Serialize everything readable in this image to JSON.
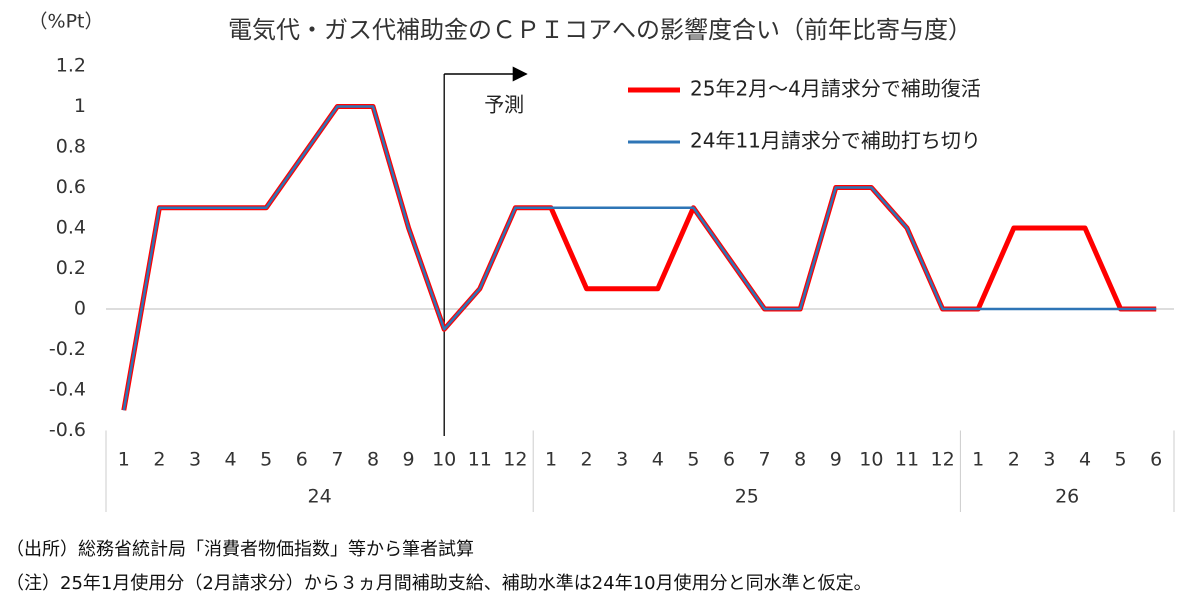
{
  "chart_data": {
    "type": "line",
    "title": "電気代・ガス代補助金のＣＰＩコアへの影響度合い（前年比寄与度）",
    "y_label": "（%Pt）",
    "categories": [
      "1",
      "2",
      "3",
      "4",
      "5",
      "6",
      "7",
      "8",
      "9",
      "10",
      "11",
      "12",
      "1",
      "2",
      "3",
      "4",
      "5",
      "6",
      "7",
      "8",
      "9",
      "10",
      "11",
      "12",
      "1",
      "2",
      "3",
      "4",
      "5",
      "6"
    ],
    "groups": [
      {
        "label": "24",
        "count": 12
      },
      {
        "label": "25",
        "count": 12
      },
      {
        "label": "26",
        "count": 6
      }
    ],
    "series": [
      {
        "name": "25年2月～4月請求分で補助復活",
        "color": "#ff0000",
        "values": [
          -0.5,
          0.5,
          0.5,
          0.5,
          0.5,
          0.75,
          1.0,
          1.0,
          0.4,
          -0.1,
          0.1,
          0.5,
          0.5,
          0.1,
          0.1,
          0.1,
          0.5,
          0.25,
          0,
          0,
          0.6,
          0.6,
          0.4,
          0,
          0,
          0.4,
          0.4,
          0.4,
          0,
          0
        ]
      },
      {
        "name": "24年11月請求分で補助打ち切り",
        "color": "#2e75b6",
        "values": [
          -0.5,
          0.5,
          0.5,
          0.5,
          0.5,
          0.75,
          1.0,
          1.0,
          0.4,
          -0.1,
          0.1,
          0.5,
          0.5,
          0.5,
          0.5,
          0.5,
          0.5,
          0.25,
          0,
          0,
          0.6,
          0.6,
          0.4,
          0,
          0,
          0,
          0,
          0,
          0,
          0
        ]
      }
    ],
    "ylim": [
      -0.6,
      1.2
    ],
    "yticks": [
      -0.6,
      -0.4,
      -0.2,
      0,
      0.2,
      0.4,
      0.6,
      0.8,
      1,
      1.2
    ],
    "annotation": {
      "text": "予測",
      "category_index": 9
    },
    "notes": [
      "（出所）総務省統計局「消費者物価指数」等から筆者試算",
      "（注）25年1月使用分（2月請求分）から３ヵ月間補助支給、補助水準は24年10月使用分と同水準と仮定。"
    ]
  }
}
